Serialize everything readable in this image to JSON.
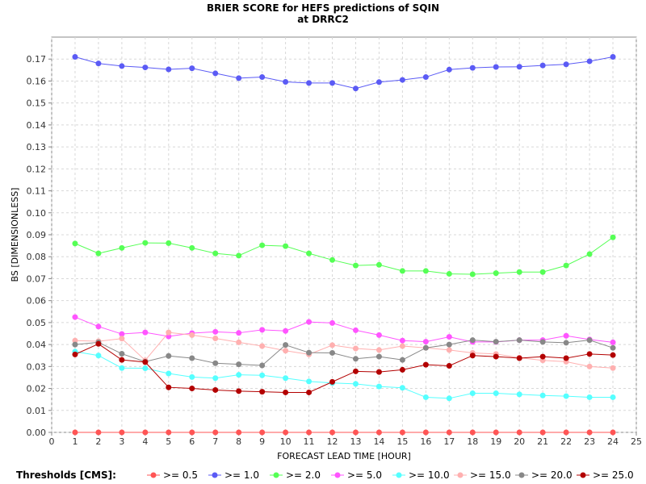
{
  "chart_data": {
    "type": "line",
    "title": "BRIER SCORE for HEFS predictions of SQIN",
    "subtitle": "at DRRC2",
    "xlabel": "FORECAST LEAD TIME [HOUR]",
    "ylabel": "BS [DIMENSIONLESS]",
    "xlim": [
      0,
      25
    ],
    "ylim": [
      0,
      0.18
    ],
    "xticks": [
      "0",
      "1",
      "2",
      "3",
      "4",
      "5",
      "6",
      "7",
      "8",
      "9",
      "10",
      "11",
      "12",
      "13",
      "14",
      "15",
      "16",
      "17",
      "18",
      "19",
      "20",
      "21",
      "22",
      "23",
      "24",
      "25"
    ],
    "yticks": [
      "0.00",
      "0.01",
      "0.02",
      "0.03",
      "0.04",
      "0.05",
      "0.06",
      "0.07",
      "0.08",
      "0.09",
      "0.10",
      "0.11",
      "0.12",
      "0.13",
      "0.14",
      "0.15",
      "0.16",
      "0.17"
    ],
    "grid": true,
    "legend_title": "Thresholds [CMS]:",
    "legend_position": "bottom",
    "x": [
      1,
      2,
      3,
      4,
      5,
      6,
      7,
      8,
      9,
      10,
      11,
      12,
      13,
      14,
      15,
      16,
      17,
      18,
      19,
      20,
      21,
      22,
      23,
      24
    ],
    "series": [
      {
        "name": ">= 0.5",
        "color": "#ff5555",
        "values": [
          0,
          0,
          0,
          0,
          0,
          0,
          0,
          0,
          0,
          0,
          0,
          0,
          0,
          0,
          0,
          0,
          0,
          0,
          0,
          0,
          0,
          0,
          0,
          0
        ]
      },
      {
        "name": ">= 1.0",
        "color": "#5b5bf5",
        "values": [
          0.171,
          0.168,
          0.1668,
          0.1662,
          0.1653,
          0.1658,
          0.1635,
          0.1613,
          0.1618,
          0.1596,
          0.1591,
          0.1591,
          0.1566,
          0.1595,
          0.1605,
          0.1618,
          0.1652,
          0.166,
          0.1664,
          0.1665,
          0.1671,
          0.1676,
          0.169,
          0.171
        ]
      },
      {
        "name": ">= 2.0",
        "color": "#55ff55",
        "values": [
          0.086,
          0.0815,
          0.084,
          0.0863,
          0.0862,
          0.084,
          0.0815,
          0.0805,
          0.0852,
          0.0848,
          0.0815,
          0.0785,
          0.076,
          0.0763,
          0.0735,
          0.0735,
          0.0722,
          0.072,
          0.0725,
          0.073,
          0.073,
          0.076,
          0.0812,
          0.0888
        ]
      },
      {
        "name": ">= 5.0",
        "color": "#ff55ff",
        "values": [
          0.0525,
          0.0482,
          0.0448,
          0.0455,
          0.0437,
          0.0452,
          0.0458,
          0.0453,
          0.0467,
          0.0462,
          0.0503,
          0.0498,
          0.0465,
          0.0443,
          0.0418,
          0.0413,
          0.0435,
          0.0412,
          0.0412,
          0.042,
          0.042,
          0.044,
          0.0423,
          0.041
        ]
      },
      {
        "name": ">= 10.0",
        "color": "#55ffff",
        "values": [
          0.0368,
          0.035,
          0.0293,
          0.0292,
          0.0268,
          0.0252,
          0.0247,
          0.0262,
          0.026,
          0.0247,
          0.0232,
          0.0225,
          0.0221,
          0.0209,
          0.0203,
          0.016,
          0.0155,
          0.0178,
          0.0178,
          0.0173,
          0.0168,
          0.0165,
          0.016,
          0.016
        ]
      },
      {
        "name": ">= 15.0",
        "color": "#ffb0b0",
        "values": [
          0.0418,
          0.0415,
          0.0427,
          0.0328,
          0.0455,
          0.0443,
          0.0428,
          0.041,
          0.0393,
          0.0372,
          0.0355,
          0.0397,
          0.0382,
          0.0375,
          0.0393,
          0.0385,
          0.0375,
          0.0362,
          0.0357,
          0.034,
          0.0328,
          0.0322,
          0.03,
          0.0293
        ]
      },
      {
        "name": ">= 20.0",
        "color": "#888888",
        "values": [
          0.04,
          0.041,
          0.0358,
          0.0322,
          0.0348,
          0.0338,
          0.0315,
          0.031,
          0.0305,
          0.0398,
          0.0363,
          0.0362,
          0.0335,
          0.0345,
          0.033,
          0.0385,
          0.04,
          0.042,
          0.0413,
          0.042,
          0.0412,
          0.0408,
          0.042,
          0.0385
        ]
      },
      {
        "name": ">= 25.0",
        "color": "#b30000",
        "values": [
          0.0355,
          0.0403,
          0.033,
          0.032,
          0.0205,
          0.02,
          0.0193,
          0.0188,
          0.0185,
          0.0182,
          0.0182,
          0.023,
          0.0278,
          0.0275,
          0.0285,
          0.0308,
          0.0303,
          0.035,
          0.0345,
          0.0338,
          0.0345,
          0.0338,
          0.0357,
          0.0352
        ]
      }
    ]
  }
}
